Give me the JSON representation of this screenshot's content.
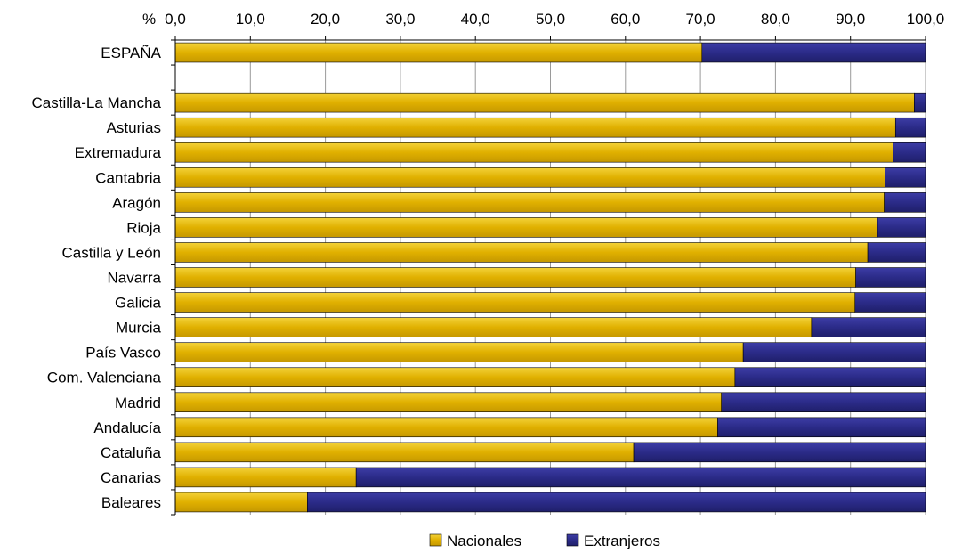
{
  "chart_data": {
    "type": "bar",
    "orientation": "horizontal",
    "stacked": true,
    "unit": "%",
    "xlim": [
      0,
      100
    ],
    "x_ticks": [
      "0,0",
      "10,0",
      "20,0",
      "30,0",
      "40,0",
      "50,0",
      "60,0",
      "70,0",
      "80,0",
      "90,0",
      "100,0"
    ],
    "x_axis_position": "top",
    "grid": true,
    "legend_position": "bottom",
    "categories": [
      "ESPAÑA",
      "",
      "Castilla-La Mancha",
      "Asturias",
      "Extremadura",
      "Cantabria",
      "Aragón",
      "Rioja",
      "Castilla y León",
      "Navarra",
      "Galicia",
      "Murcia",
      "País Vasco",
      "Com. Valenciana",
      "Madrid",
      "Andalucía",
      "Cataluña",
      "Canarias",
      "Baleares"
    ],
    "series": [
      {
        "name": "Nacionales",
        "color": "#e8b800",
        "values": [
          70.2,
          null,
          98.5,
          96.0,
          95.7,
          94.6,
          94.5,
          93.6,
          92.3,
          90.7,
          90.6,
          84.8,
          75.7,
          74.6,
          72.8,
          72.3,
          61.1,
          24.1,
          17.6
        ]
      },
      {
        "name": "Extranjeros",
        "color": "#2e2e8c",
        "values": [
          29.8,
          null,
          1.5,
          4.0,
          4.3,
          5.4,
          5.5,
          6.4,
          7.7,
          9.3,
          9.4,
          15.2,
          24.3,
          25.4,
          27.2,
          27.7,
          38.9,
          75.9,
          82.4
        ]
      }
    ]
  }
}
